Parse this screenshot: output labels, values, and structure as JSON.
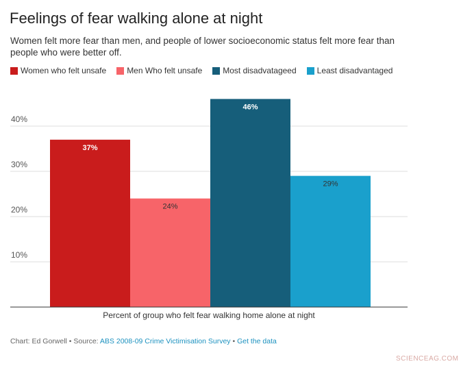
{
  "header": {
    "title": "Feelings of fear walking alone at night",
    "subtitle": "Women felt more fear than men, and people of lower socioeconomic status felt more fear than people who were better off."
  },
  "footer": {
    "chart_credit": "Chart: Ed Gorwell",
    "separator": " • ",
    "source_label": "Source: ",
    "source_link": "ABS 2008-09 Crime Victimisation Survey",
    "get_data_link": "Get the data"
  },
  "watermark": "SCIENCEAG.COM",
  "chart_data": {
    "type": "bar",
    "title": "Feelings of fear walking alone at night",
    "xlabel": "Percent of group who felt fear walking home alone at night",
    "ylabel": "",
    "ylim": [
      0,
      50
    ],
    "yticks": [
      10,
      20,
      30,
      40
    ],
    "ytick_labels": [
      "10%",
      "20%",
      "30%",
      "40%"
    ],
    "grid": true,
    "legend_position": "top-left",
    "series": [
      {
        "name": "Women who felt unsafe",
        "value": 37,
        "label": "37%",
        "color": "#c91c1c",
        "label_color": "#ffffff",
        "label_bold": true
      },
      {
        "name": "Men Who felt unsafe",
        "value": 24,
        "label": "24%",
        "color": "#f76469",
        "label_color": "#333333",
        "label_bold": false
      },
      {
        "name": "Most disadvatageed",
        "value": 46,
        "label": "46%",
        "color": "#165e7a",
        "label_color": "#ffffff",
        "label_bold": true
      },
      {
        "name": "Least disadvantaged",
        "value": 29,
        "label": "29%",
        "color": "#1aa0cc",
        "label_color": "#333333",
        "label_bold": false
      }
    ]
  }
}
